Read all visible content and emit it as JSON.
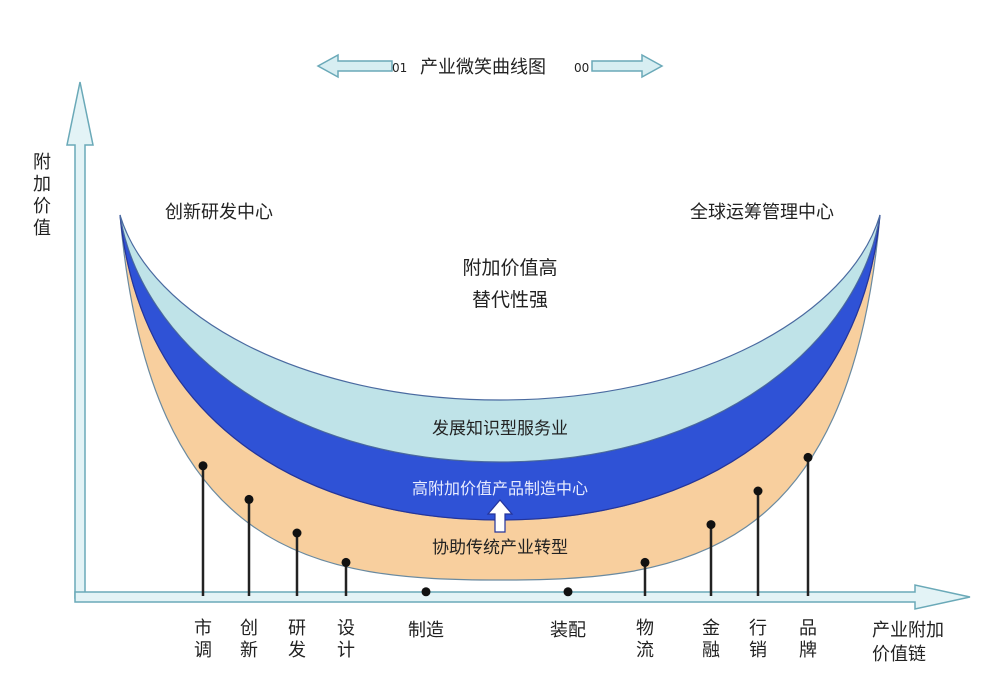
{
  "title": {
    "text": "产业微笑曲线图",
    "left_mark": "01",
    "right_mark": "00"
  },
  "y_axis_label": [
    "附",
    "加",
    "价",
    "值"
  ],
  "x_axis_label": [
    "产业附加",
    "价值链"
  ],
  "left_end_label": "创新研发中心",
  "right_end_label": "全球运筹管理中心",
  "center_label": [
    "附加价值高",
    "替代性强"
  ],
  "bands": [
    {
      "name": "knowledge-service",
      "label": "发展知识型服务业",
      "color": "#bfe3e8"
    },
    {
      "name": "high-value-manufacturing",
      "label": "高附加价值产品制造中心",
      "color": "#2f52d6"
    },
    {
      "name": "traditional-transform",
      "label": "协助传统产业转型",
      "color": "#f8cf9e"
    }
  ],
  "stages": [
    {
      "label": "市调",
      "value": 0.62
    },
    {
      "label": "创新",
      "value": 0.46
    },
    {
      "label": "研发",
      "value": 0.3
    },
    {
      "label": "设计",
      "value": 0.16
    },
    {
      "label": "制造",
      "value": 0.02
    },
    {
      "label": "装配",
      "value": 0.02
    },
    {
      "label": "物流",
      "value": 0.16
    },
    {
      "label": "金融",
      "value": 0.34
    },
    {
      "label": "行销",
      "value": 0.5
    },
    {
      "label": "品牌",
      "value": 0.66
    }
  ]
}
